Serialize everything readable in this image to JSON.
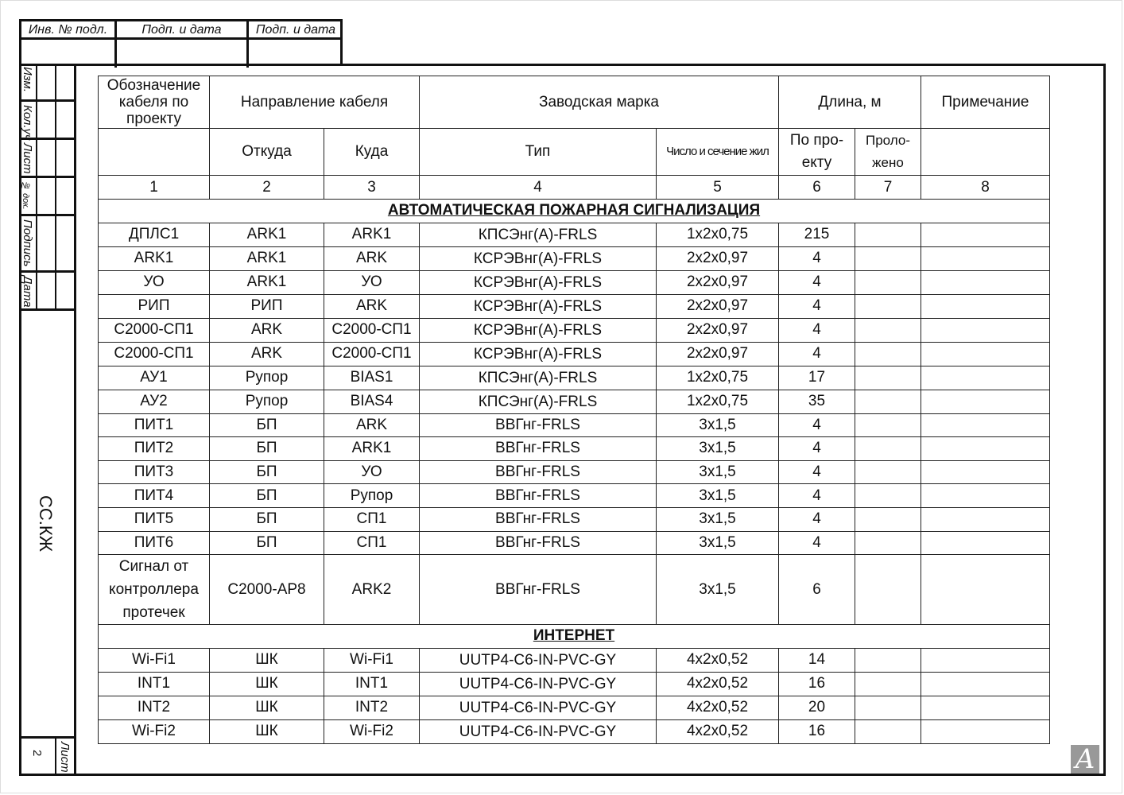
{
  "stamp": {
    "labels": [
      "Инв. № подл.",
      "Подп. и дата",
      "Подп. и дата"
    ]
  },
  "side": {
    "labels": [
      "Изм.",
      "Кол.уч",
      "Лист",
      "№ док.",
      "Подпись",
      "Дата"
    ],
    "doc_code": "СС.КЖ",
    "sheet_label": "Лист",
    "sheet_number": "2"
  },
  "header": {
    "designation": "Обозначение кабеля по проекту",
    "direction": "Направление кабеля",
    "brand": "Заводская марка",
    "length": "Длина, м",
    "note": "Примечание",
    "from": "Откуда",
    "to": "Куда",
    "type": "Тип",
    "cores": "Число и сечение жил",
    "by_project": "По про- екту",
    "laid": "Проло- жено",
    "nums": [
      "1",
      "2",
      "3",
      "4",
      "5",
      "6",
      "7",
      "8"
    ]
  },
  "sections": [
    {
      "title": "АВТОМАТИЧЕСКАЯ ПОЖАРНАЯ СИГНАЛИЗАЦИЯ",
      "rows": [
        [
          "ДПЛС1",
          "ARK1",
          "ARK1",
          "КПСЭнг(А)-FRLS",
          "1x2x0,75",
          "215"
        ],
        [
          "ARK1",
          "ARK1",
          "ARK",
          "КСРЭВнг(А)-FRLS",
          "2x2x0,97",
          "4"
        ],
        [
          "УО",
          "ARK1",
          "УО",
          "КСРЭВнг(А)-FRLS",
          "2x2x0,97",
          "4"
        ],
        [
          "РИП",
          "РИП",
          "ARK",
          "КСРЭВнг(А)-FRLS",
          "2x2x0,97",
          "4"
        ],
        [
          "С2000-СП1",
          "ARK",
          "С2000-СП1",
          "КСРЭВнг(А)-FRLS",
          "2x2x0,97",
          "4"
        ],
        [
          "С2000-СП1",
          "ARK",
          "С2000-СП1",
          "КСРЭВнг(А)-FRLS",
          "2x2x0,97",
          "4"
        ],
        [
          "АУ1",
          "Рупор",
          "BIAS1",
          "КПСЭнг(А)-FRLS",
          "1x2x0,75",
          "17"
        ],
        [
          "АУ2",
          "Рупор",
          "BIAS4",
          "КПСЭнг(А)-FRLS",
          "1x2x0,75",
          "35"
        ],
        [
          "ПИТ1",
          "БП",
          "ARK",
          "ВВГнг-FRLS",
          "3x1,5",
          "4"
        ],
        [
          "ПИТ2",
          "БП",
          "ARK1",
          "ВВГнг-FRLS",
          "3x1,5",
          "4"
        ],
        [
          "ПИТ3",
          "БП",
          "УО",
          "ВВГнг-FRLS",
          "3x1,5",
          "4"
        ],
        [
          "ПИТ4",
          "БП",
          "Рупор",
          "ВВГнг-FRLS",
          "3x1,5",
          "4"
        ],
        [
          "ПИТ5",
          "БП",
          "СП1",
          "ВВГнг-FRLS",
          "3x1,5",
          "4"
        ],
        [
          "ПИТ6",
          "БП",
          "СП1",
          "ВВГнг-FRLS",
          "3x1,5",
          "4"
        ],
        [
          "Сигнал от контроллера протечек",
          "С2000-АР8",
          "ARK2",
          "ВВГнг-FRLS",
          "3x1,5",
          "6"
        ]
      ]
    },
    {
      "title": "ИНТЕРНЕТ",
      "rows": [
        [
          "Wi-Fi1",
          "ШК",
          "Wi-Fi1",
          "UUTP4-C6-IN-PVC-GY",
          "4x2x0,52",
          "14"
        ],
        [
          "INT1",
          "ШК",
          "INT1",
          "UUTP4-C6-IN-PVC-GY",
          "4x2x0,52",
          "16"
        ],
        [
          "INT2",
          "ШК",
          "INT2",
          "UUTP4-C6-IN-PVC-GY",
          "4x2x0,52",
          "20"
        ],
        [
          "Wi-Fi2",
          "ШК",
          "Wi-Fi2",
          "UUTP4-C6-IN-PVC-GY",
          "4x2x0,52",
          "16"
        ]
      ]
    }
  ],
  "logo": {
    "text": "A"
  }
}
